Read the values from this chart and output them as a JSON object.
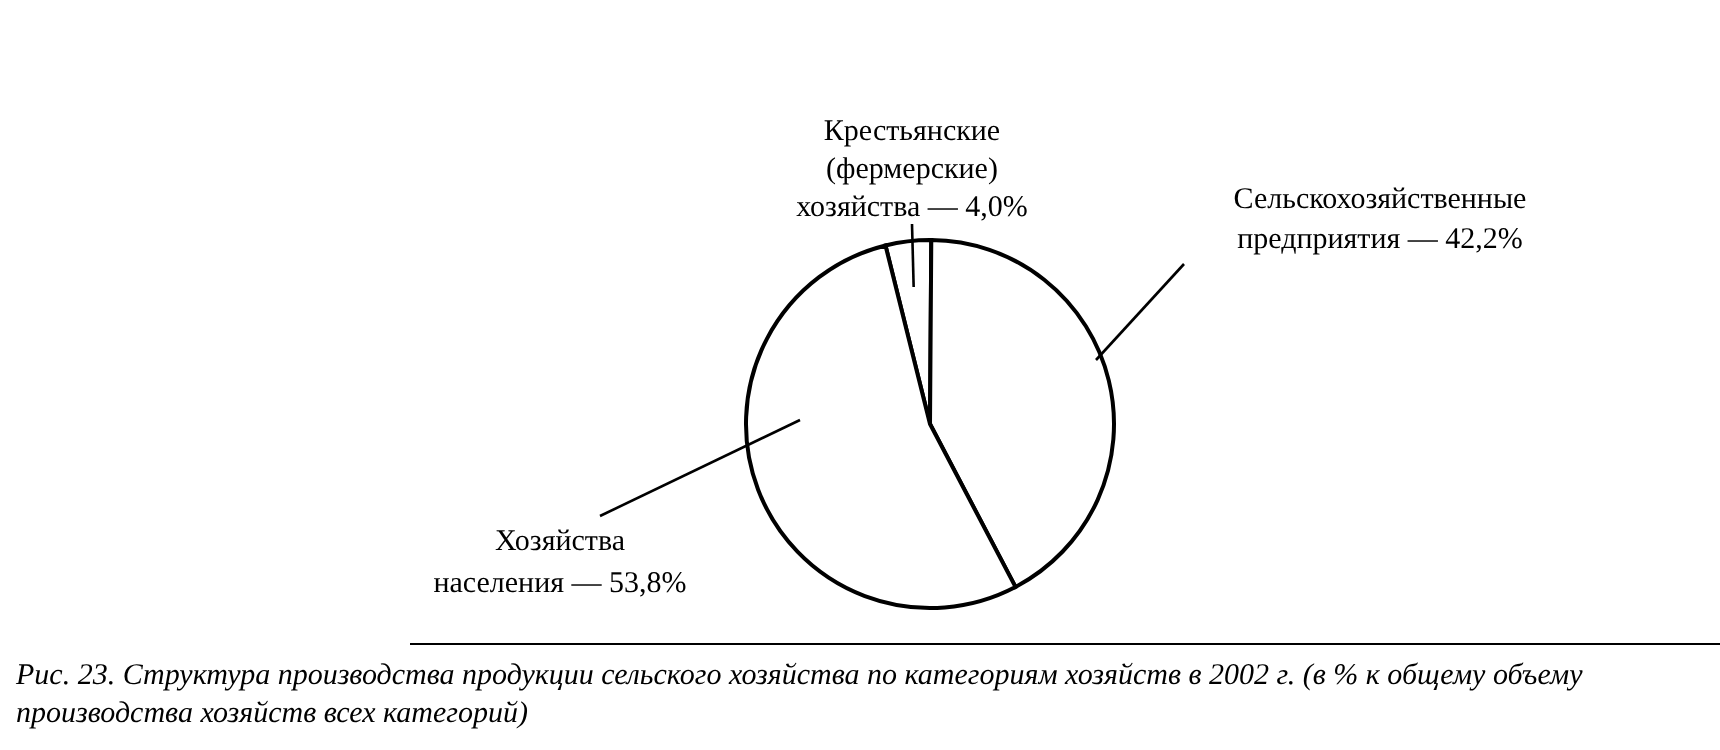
{
  "chart_data": {
    "type": "pie",
    "categories": [
      "Крестьянские (фермерские) хозяйства",
      "Сельскохозяйственные предприятия",
      "Хозяйства населения"
    ],
    "values": [
      4.0,
      42.2,
      53.8
    ],
    "value_labels": [
      "— 4,0%",
      "— 42,2%",
      "— 53,8%"
    ],
    "colors": [
      "#ffffff",
      "#ffffff",
      "#ffffff"
    ],
    "annotations": [
      "Рис. 23. Структура производства продукции сельского хозяйства по категориям хозяйств в 2002 г. (в % к общему объему производства хозяйств всех категорий)"
    ]
  }
}
